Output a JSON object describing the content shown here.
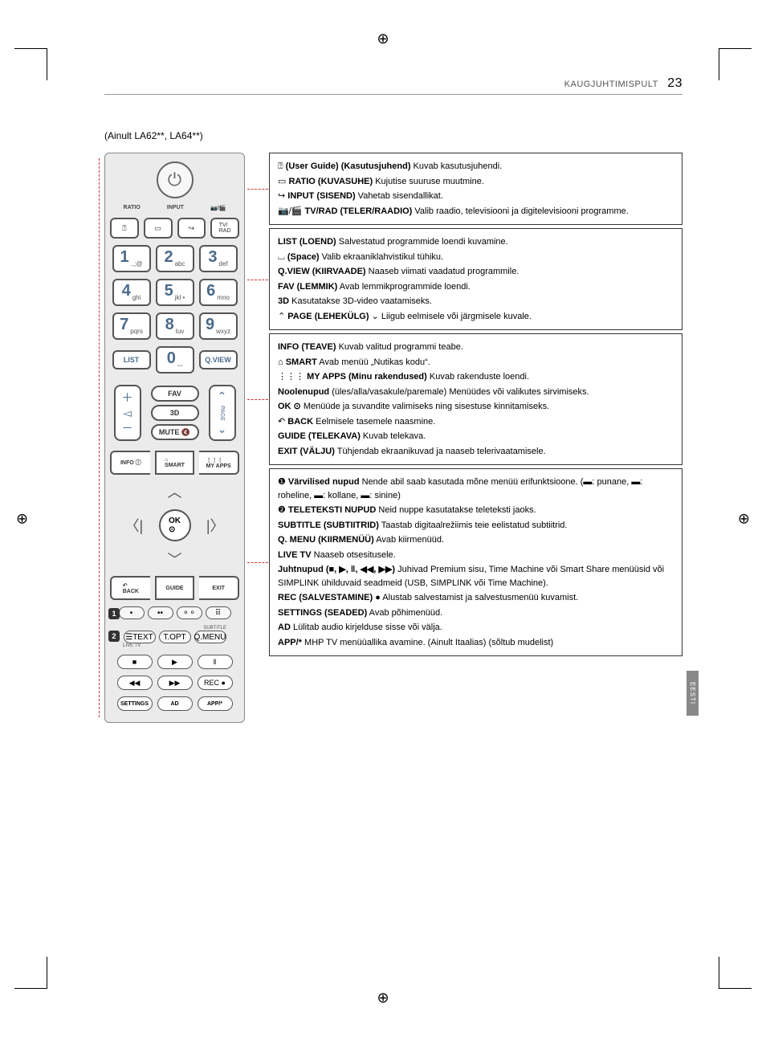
{
  "header": {
    "section": "KAUGJUHTIMISPULT",
    "page": "23"
  },
  "subtitle": "(Ainult LA62**, LA64**)",
  "side_tab": "EESTI",
  "remote": {
    "labelrow": [
      "RATIO",
      "INPUT",
      "📷/🎬"
    ],
    "tvrad": "TV/\nRAD",
    "keys": {
      "1": {
        "n": "1",
        "s": ".,;@"
      },
      "2": {
        "n": "2",
        "s": "abc"
      },
      "3": {
        "n": "3",
        "s": "def"
      },
      "4": {
        "n": "4",
        "s": "ghi"
      },
      "5": {
        "n": "5",
        "s": "jkl •"
      },
      "6": {
        "n": "6",
        "s": "mno"
      },
      "7": {
        "n": "7",
        "s": "pqrs"
      },
      "8": {
        "n": "8",
        "s": "tuv"
      },
      "9": {
        "n": "9",
        "s": "wxyz"
      },
      "0": {
        "n": "0",
        "s": "⌴"
      }
    },
    "list": "LIST",
    "qview": "Q.VIEW",
    "fav": "FAV",
    "threeD": "3D",
    "mute": "MUTE 🔇",
    "info": "INFO ⓘ",
    "smart": "⌂\nSMART",
    "myapps": "⋮⋮⋮\nMY APPS",
    "ok": "OK\n⊙",
    "back": "↶\nBACK",
    "guide": "GUIDE",
    "exit": "EXIT",
    "text_btns": [
      "☰TEXT",
      "T.OPT",
      "Q.MENU"
    ],
    "subtitle_lbl": "SUBTITLE",
    "livetv_lbl": "LIVE TV",
    "play": [
      "■",
      "▶",
      "‖"
    ],
    "seek": [
      "◀◀",
      "▶▶",
      "REC ●"
    ],
    "bottom": [
      "SETTINGS",
      "AD",
      "APP/*"
    ]
  },
  "boxes": [
    {
      "lines": [
        {
          "pre": "⍰ ",
          "b": "(User Guide) (Kasutusjuhend)",
          "t": " Kuvab kasutusjuhendi."
        },
        {
          "pre": "▭ ",
          "b": "RATIO (KUVASUHE)",
          "t": " Kujutise suuruse muutmine."
        },
        {
          "pre": "↪ ",
          "b": "INPUT (SISEND)",
          "t": " Vahetab sisendallikat."
        },
        {
          "pre": "📷/🎬 ",
          "b": "TV/RAD (TELER/RAADIO)",
          "t": " Valib raadio, televisiooni ja digitelevisiooni programme."
        }
      ]
    },
    {
      "lines": [
        {
          "b": "LIST (LOEND)",
          "t": " Salvestatud programmide loendi kuvamine."
        },
        {
          "pre": "⌴ ",
          "b": "(Space)",
          "t": " Valib ekraaniklahvistikul tühiku."
        },
        {
          "b": "Q.VIEW (KIIRVAADE)",
          "t": " Naaseb viimati vaadatud programmile."
        },
        {
          "b": "FAV (LEMMIK)",
          "t": " Avab lemmikprogrammide loendi."
        },
        {
          "b": "3D",
          "t": " Kasutatakse 3D-video vaatamiseks."
        },
        {
          "pre": "⌃ ",
          "b": "PAGE (LEHEKÜLG)",
          "post": " ⌄",
          "t": " Liigub eelmisele või järgmisele kuvale."
        }
      ]
    },
    {
      "lines": [
        {
          "b": "INFO (TEAVE)",
          "t": " Kuvab valitud programmi teabe."
        },
        {
          "pre": "⌂ ",
          "b": "SMART",
          "t": " Avab menüü „Nutikas kodu“."
        },
        {
          "pre": "⋮⋮⋮ ",
          "b": "MY APPS (Minu rakendused)",
          "t": " Kuvab rakenduste loendi."
        },
        {
          "b": "Noolenupud",
          "t": " (üles/alla/vasakule/paremale) Menüüdes või valikutes sirvimiseks."
        },
        {
          "b": "OK ⊙",
          "t": " Menüüde ja suvandite valimiseks ning sisestuse kinnitamiseks."
        },
        {
          "pre": "↶ ",
          "b": "BACK",
          "t": " Eelmisele tasemele naasmine."
        },
        {
          "b": "GUIDE (TELEKAVA)",
          "t": " Kuvab telekava."
        },
        {
          "b": "EXIT (VÄLJU)",
          "t": "  Tühjendab ekraanikuvad ja naaseb telerivaatamisele."
        }
      ]
    },
    {
      "lines": [
        {
          "pre": "❶ ",
          "b": "Värvilised nupud",
          "t": " Nende abil saab kasutada mõne menüü erifunktsioone. (▬: punane, ▬: roheline, ▬: kollane, ▬: sinine)"
        },
        {
          "pre": "❷ ",
          "b": "TELETEKSTI NUPUD",
          "t": " Neid nuppe kasutatakse teleteksti jaoks."
        },
        {
          "b": "SUBTITLE (SUBTIITRID)",
          "t": " Taastab digitaalrežiimis teie eelistatud subtiitrid."
        },
        {
          "b": "Q. MENU (KIIRMENÜÜ)",
          "t": " Avab kiirmenüüd."
        },
        {
          "b": "LIVE TV",
          "t": " Naaseb otsesitusele."
        },
        {
          "b": "Juhtnupud (■, ▶, ‖, ◀◀, ▶▶)",
          "t": " Juhivad Premium sisu, Time Machine või Smart Share menüüsid või SIMPLINK ühilduvaid seadmeid (USB, SIMPLINK või Time Machine)."
        },
        {
          "b": "REC (SALVESTAMINE) ●",
          "t": " Alustab salvestamist ja salvestusmenüü kuvamist."
        },
        {
          "b": "SETTINGS (SEADED)",
          "t": " Avab põhimenüüd."
        },
        {
          "b": "AD",
          "t": " Lülitab audio kirjelduse sisse või välja."
        },
        {
          "b": "APP/*",
          "t": " MHP TV menüüallika avamine. (Ainult Itaalias) (sõltub mudelist)"
        }
      ]
    }
  ]
}
